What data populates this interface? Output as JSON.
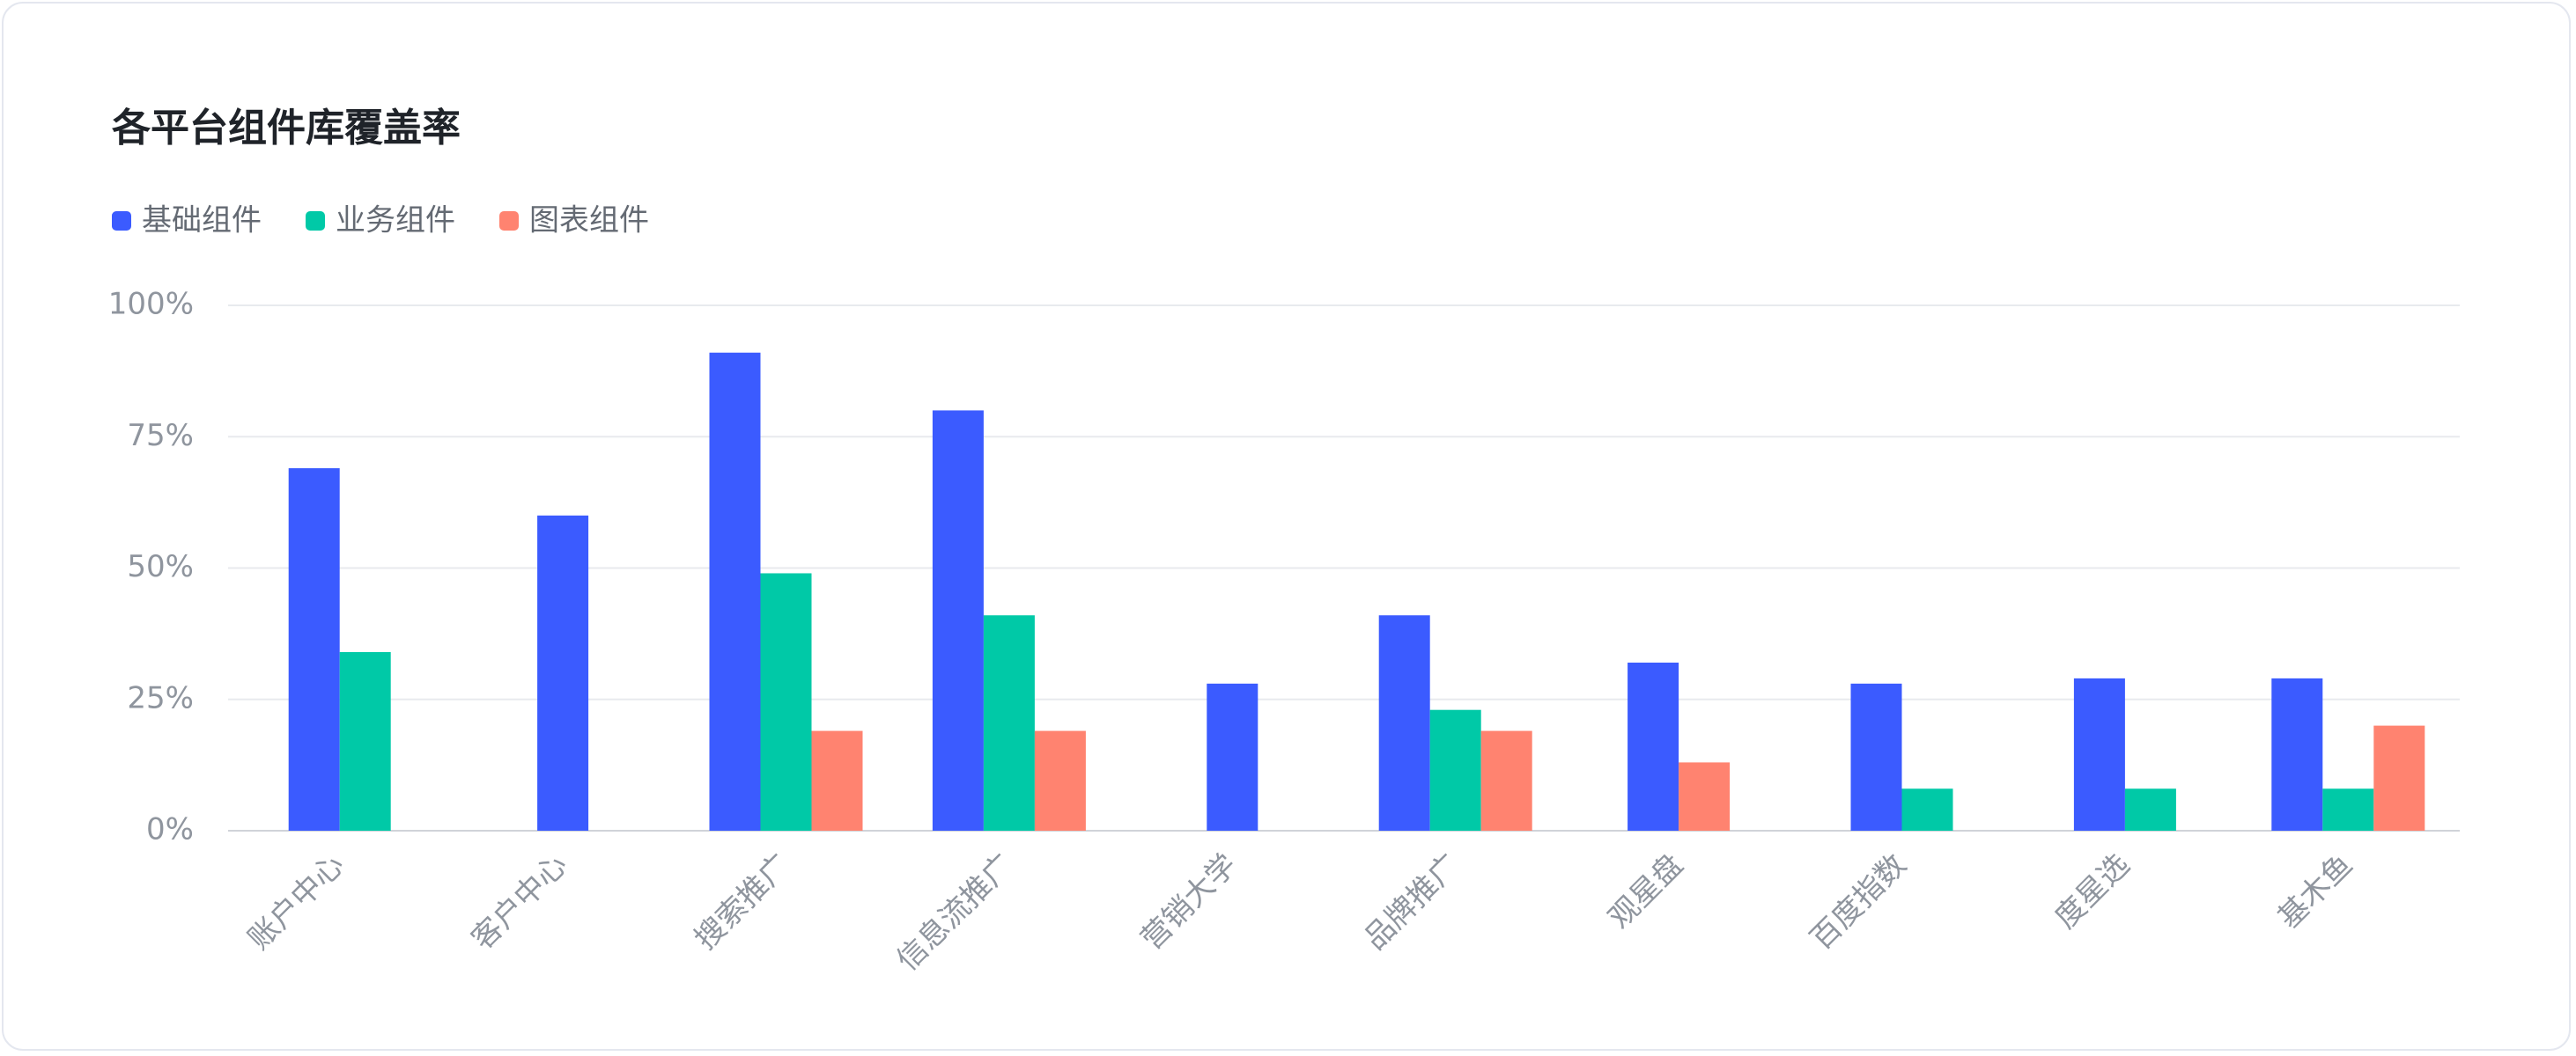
{
  "chart_data": {
    "type": "bar",
    "title": "各平台组件库覆盖率",
    "categories": [
      "账户中心",
      "客户中心",
      "搜索推广",
      "信息流推广",
      "营销大学",
      "品牌推广",
      "观星盘",
      "百度指数",
      "度星选",
      "基木鱼"
    ],
    "series": [
      {
        "name": "基础组件",
        "color": "#3b5bff",
        "values": [
          69,
          60,
          91,
          80,
          28,
          41,
          32,
          28,
          29,
          29
        ]
      },
      {
        "name": "业务组件",
        "color": "#00c9a7",
        "values": [
          34,
          null,
          49,
          41,
          null,
          23,
          null,
          8,
          8,
          8
        ]
      },
      {
        "name": "图表组件",
        "color": "#ff8370",
        "values": [
          null,
          null,
          19,
          19,
          null,
          19,
          13,
          null,
          null,
          20
        ]
      }
    ],
    "ylim": [
      0,
      100
    ],
    "yticks": [
      {
        "value": 0,
        "label": "0%"
      },
      {
        "value": 25,
        "label": "25%"
      },
      {
        "value": 50,
        "label": "50%"
      },
      {
        "value": 75,
        "label": "75%"
      },
      {
        "value": 100,
        "label": "100%"
      }
    ],
    "grid": true,
    "legend": "top-left"
  }
}
